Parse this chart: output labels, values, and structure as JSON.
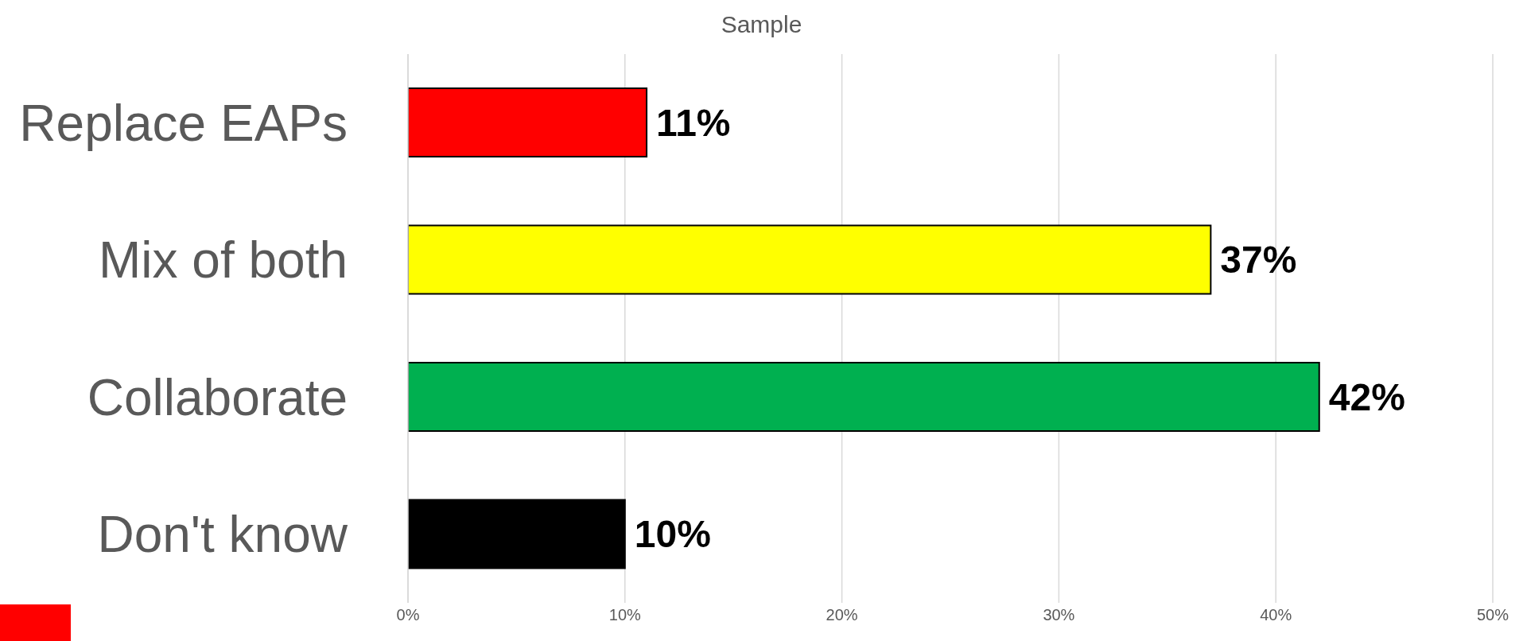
{
  "chart_data": {
    "type": "bar",
    "orientation": "horizontal",
    "title": "Sample",
    "categories": [
      "Replace EAPs",
      "Mix of both",
      "Collaborate",
      "Don't know"
    ],
    "values": [
      11,
      37,
      42,
      10
    ],
    "colors": [
      "#ff0000",
      "#ffff00",
      "#00b050",
      "#000000"
    ],
    "value_labels": [
      "11%",
      "37%",
      "42%",
      "10%"
    ],
    "xlim": [
      0,
      50
    ],
    "xticks": [
      {
        "value": 0,
        "label": "0%"
      },
      {
        "value": 10,
        "label": "10%"
      },
      {
        "value": 20,
        "label": "20%"
      },
      {
        "value": 30,
        "label": "30%"
      },
      {
        "value": 40,
        "label": "40%"
      },
      {
        "value": 50,
        "label": "50%"
      }
    ],
    "grid": "x"
  }
}
